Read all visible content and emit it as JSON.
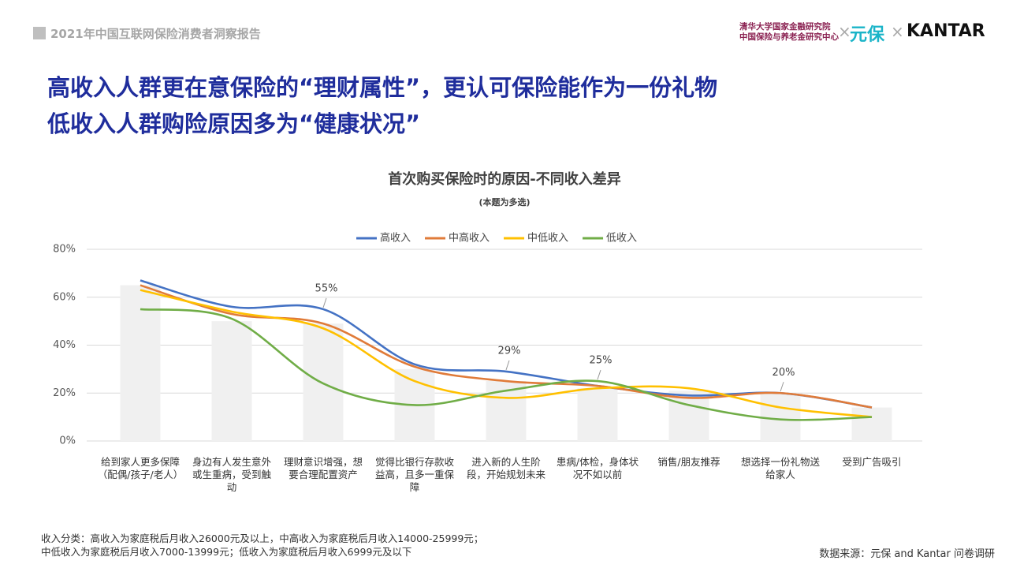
{
  "header": {
    "report": "2021年中国互联网保险消费者洞察报告",
    "logo_lines": [
      "清华大学国家金融研究院",
      "中国保险与养老金研究中心"
    ],
    "logo_x": "×",
    "logo_brand": "元保",
    "logo_kantar": "KANTAR"
  },
  "headline": [
    "高收入人群更在意保险的“理财属性”，更认可保险能作为一份礼物",
    "低收入人群购险原因多为“健康状况”"
  ],
  "chart_data": {
    "type": "line",
    "title": "首次购买保险时的原因-不同收入差异",
    "subtitle": "(本题为多选)",
    "categories": [
      "给到家人更多保障（配偶/孩子/老人）",
      "身边有人发生意外或生重病，受到触动",
      "理财意识增强，想要合理配置资产",
      "觉得比银行存款收益高，且多一重保障",
      "进入新的人生阶段，开始规划未来",
      "患病/体检，身体状况不如以前",
      "销售/朋友推荐",
      "想选择一份礼物送给家人",
      "受到广告吸引"
    ],
    "bar_values": [
      65,
      50,
      49,
      30,
      25,
      22,
      21,
      20,
      14
    ],
    "bar_color": "#f0f0f0",
    "series": [
      {
        "name": "高收入",
        "color": "#4472c4",
        "values": [
          67,
          56,
          55,
          32,
          29,
          23,
          19,
          20,
          14
        ],
        "value_labels": [
          null,
          null,
          "55%",
          null,
          "29%",
          null,
          null,
          null,
          null
        ]
      },
      {
        "name": "中高收入",
        "color": "#e07b39",
        "values": [
          65,
          53,
          49,
          31,
          25,
          23,
          18,
          20,
          14
        ],
        "value_labels": [
          null,
          null,
          null,
          null,
          null,
          null,
          null,
          "20%",
          null
        ]
      },
      {
        "name": "中低收入",
        "color": "#ffc000",
        "values": [
          63,
          54,
          47,
          25,
          18,
          22,
          22,
          14,
          10
        ],
        "value_labels": [
          null,
          null,
          null,
          null,
          null,
          null,
          null,
          null,
          null
        ]
      },
      {
        "name": "低收入",
        "color": "#70ad47",
        "values": [
          55,
          51,
          24,
          15,
          21,
          25,
          15,
          9,
          10
        ],
        "value_labels": [
          null,
          null,
          null,
          null,
          null,
          "25%",
          null,
          null,
          null
        ]
      }
    ],
    "ylim": [
      0,
      80
    ],
    "yticks": [
      {
        "value": 0,
        "label": "0%"
      },
      {
        "value": 20,
        "label": "20%"
      },
      {
        "value": 40,
        "label": "40%"
      },
      {
        "value": 60,
        "label": "60%"
      },
      {
        "value": 80,
        "label": "80%"
      }
    ],
    "grid": true,
    "legend": "top"
  },
  "footnote": [
    "收入分类：高收入为家庭税后月收入26000元及以上，中高收入为家庭税后月收入14000-25999元；",
    "中低收入为家庭税后月收入7000-13999元；低收入为家庭税后月收入6999元及以下"
  ],
  "source": "数据来源：元保 and Kantar 问卷调研"
}
